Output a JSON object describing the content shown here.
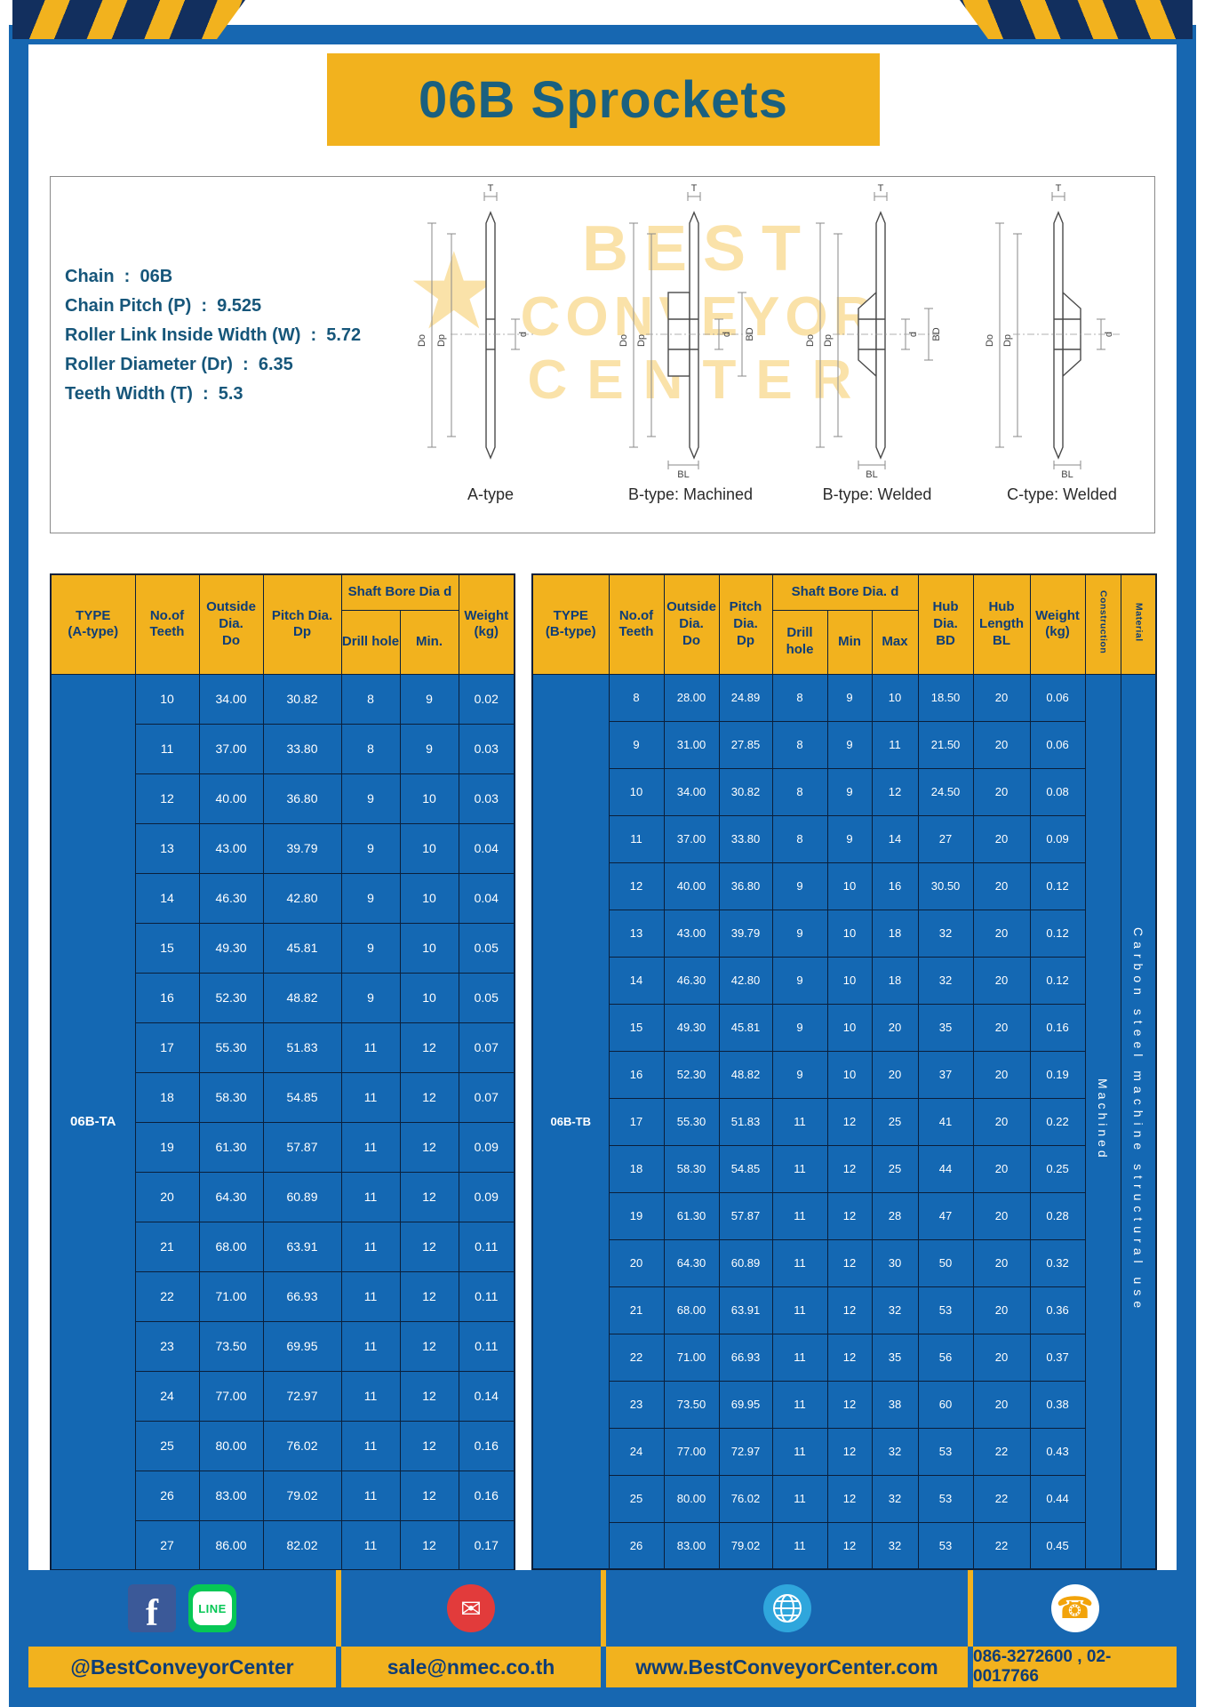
{
  "page": {
    "title": "06B Sprockets"
  },
  "colors": {
    "frame_blue": "#1767B1",
    "brand_yellow": "#F2B21E",
    "title_teal": "#1A607F",
    "table_body_blue": "#1468B3",
    "header_text_navy": "#0E3D77",
    "facebook_blue": "#3B5998",
    "line_green": "#06C755",
    "email_red": "#E23B3B",
    "globe_blue": "#2FA6DC",
    "phone_orange": "#F2A30A"
  },
  "specs": {
    "lines": [
      "Chain  :  06B",
      "Chain Pitch (P)  :  9.525",
      "Roller Link Inside Width (W)  :  5.72",
      "Roller Diameter (Dr)  :  6.35",
      "Teeth Width (T)  :  5.3"
    ]
  },
  "watermark": {
    "line1": "BEST",
    "line2": "CONVEYOR",
    "line3": "CENTER",
    "star": "★"
  },
  "drawings": {
    "captions": [
      "A-type",
      "B-type: Machined",
      "B-type: Welded",
      "C-type: Welded"
    ],
    "dim_labels": {
      "t": "T",
      "do": "Do",
      "dp": "Dp",
      "d": "d",
      "bd": "BD",
      "bl": "BL"
    }
  },
  "tableA": {
    "title": "TYPE\n(A-type)",
    "col_teeth": "No.of\nTeeth",
    "col_outside": "Outside\nDia.\nDo",
    "col_pitch": "Pitch Dia.\nDp",
    "group_bore": "Shaft Bore Dia d",
    "col_drill": "Drill hole",
    "col_min": "Min.",
    "col_weight": "Weight\n(kg)",
    "type_value": "06B-TA",
    "rows": [
      [
        "10",
        "34.00",
        "30.82",
        "8",
        "9",
        "0.02"
      ],
      [
        "11",
        "37.00",
        "33.80",
        "8",
        "9",
        "0.03"
      ],
      [
        "12",
        "40.00",
        "36.80",
        "9",
        "10",
        "0.03"
      ],
      [
        "13",
        "43.00",
        "39.79",
        "9",
        "10",
        "0.04"
      ],
      [
        "14",
        "46.30",
        "42.80",
        "9",
        "10",
        "0.04"
      ],
      [
        "15",
        "49.30",
        "45.81",
        "9",
        "10",
        "0.05"
      ],
      [
        "16",
        "52.30",
        "48.82",
        "9",
        "10",
        "0.05"
      ],
      [
        "17",
        "55.30",
        "51.83",
        "11",
        "12",
        "0.07"
      ],
      [
        "18",
        "58.30",
        "54.85",
        "11",
        "12",
        "0.07"
      ],
      [
        "19",
        "61.30",
        "57.87",
        "11",
        "12",
        "0.09"
      ],
      [
        "20",
        "64.30",
        "60.89",
        "11",
        "12",
        "0.09"
      ],
      [
        "21",
        "68.00",
        "63.91",
        "11",
        "12",
        "0.11"
      ],
      [
        "22",
        "71.00",
        "66.93",
        "11",
        "12",
        "0.11"
      ],
      [
        "23",
        "73.50",
        "69.95",
        "11",
        "12",
        "0.11"
      ],
      [
        "24",
        "77.00",
        "72.97",
        "11",
        "12",
        "0.14"
      ],
      [
        "25",
        "80.00",
        "76.02",
        "11",
        "12",
        "0.16"
      ],
      [
        "26",
        "83.00",
        "79.02",
        "11",
        "12",
        "0.16"
      ],
      [
        "27",
        "86.00",
        "82.02",
        "11",
        "12",
        "0.17"
      ]
    ]
  },
  "tableB": {
    "title": "TYPE\n(B-type)",
    "col_teeth": "No.of\nTeeth",
    "col_outside": "Outside\nDia.\nDo",
    "col_pitch": "Pitch\nDia.\nDp",
    "group_bore": "Shaft Bore Dia.  d",
    "col_drill": "Drill hole",
    "col_min": "Min",
    "col_max": "Max",
    "col_hub_dia": "Hub\nDia.\nBD",
    "col_hub_len": "Hub\nLength\nBL",
    "col_weight": "Weight\n(kg)",
    "col_construction": "Construction",
    "col_material": "Material",
    "type_value": "06B-TB",
    "construction_value": "Machined",
    "material_value": "Carbon steel machine structural use",
    "rows": [
      [
        "8",
        "28.00",
        "24.89",
        "8",
        "9",
        "10",
        "18.50",
        "20",
        "0.06"
      ],
      [
        "9",
        "31.00",
        "27.85",
        "8",
        "9",
        "11",
        "21.50",
        "20",
        "0.06"
      ],
      [
        "10",
        "34.00",
        "30.82",
        "8",
        "9",
        "12",
        "24.50",
        "20",
        "0.08"
      ],
      [
        "11",
        "37.00",
        "33.80",
        "8",
        "9",
        "14",
        "27",
        "20",
        "0.09"
      ],
      [
        "12",
        "40.00",
        "36.80",
        "9",
        "10",
        "16",
        "30.50",
        "20",
        "0.12"
      ],
      [
        "13",
        "43.00",
        "39.79",
        "9",
        "10",
        "18",
        "32",
        "20",
        "0.12"
      ],
      [
        "14",
        "46.30",
        "42.80",
        "9",
        "10",
        "18",
        "32",
        "20",
        "0.12"
      ],
      [
        "15",
        "49.30",
        "45.81",
        "9",
        "10",
        "20",
        "35",
        "20",
        "0.16"
      ],
      [
        "16",
        "52.30",
        "48.82",
        "9",
        "10",
        "20",
        "37",
        "20",
        "0.19"
      ],
      [
        "17",
        "55.30",
        "51.83",
        "11",
        "12",
        "25",
        "41",
        "20",
        "0.22"
      ],
      [
        "18",
        "58.30",
        "54.85",
        "11",
        "12",
        "25",
        "44",
        "20",
        "0.25"
      ],
      [
        "19",
        "61.30",
        "57.87",
        "11",
        "12",
        "28",
        "47",
        "20",
        "0.28"
      ],
      [
        "20",
        "64.30",
        "60.89",
        "11",
        "12",
        "30",
        "50",
        "20",
        "0.32"
      ],
      [
        "21",
        "68.00",
        "63.91",
        "11",
        "12",
        "32",
        "53",
        "20",
        "0.36"
      ],
      [
        "22",
        "71.00",
        "66.93",
        "11",
        "12",
        "35",
        "56",
        "20",
        "0.37"
      ],
      [
        "23",
        "73.50",
        "69.95",
        "11",
        "12",
        "38",
        "60",
        "20",
        "0.38"
      ],
      [
        "24",
        "77.00",
        "72.97",
        "11",
        "12",
        "32",
        "53",
        "22",
        "0.43"
      ],
      [
        "25",
        "80.00",
        "76.02",
        "11",
        "12",
        "32",
        "53",
        "22",
        "0.44"
      ],
      [
        "26",
        "83.00",
        "79.02",
        "11",
        "12",
        "32",
        "53",
        "22",
        "0.45"
      ]
    ]
  },
  "footer": {
    "social_label": "@BestConveyorCenter",
    "email": "sale@nmec.co.th",
    "website": "www.BestConveyorCenter.com",
    "phones": "086-3272600 , 02-0017766",
    "icons": {
      "facebook": "f",
      "line": "LINE",
      "email": "✉",
      "phone": "☎"
    }
  }
}
